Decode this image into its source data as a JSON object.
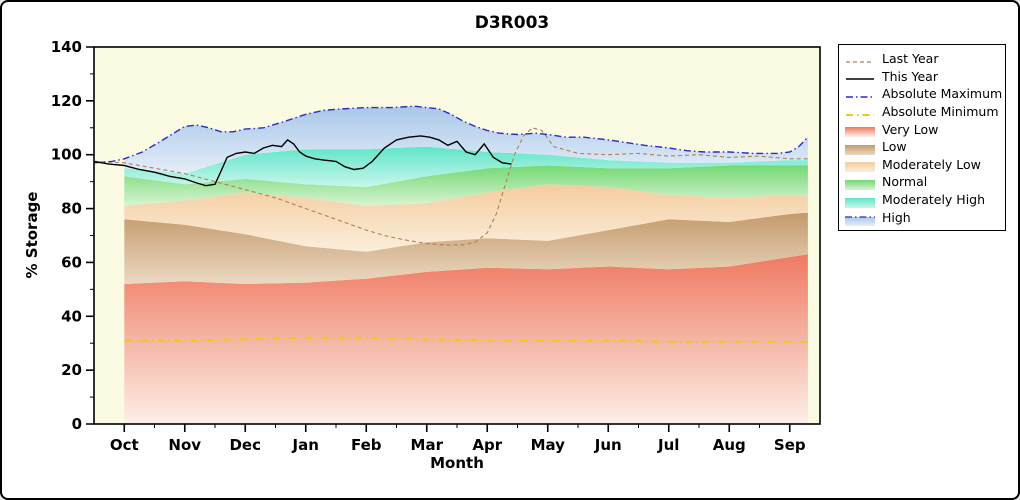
{
  "window": {
    "bg": "#ffffff",
    "border": "#000000"
  },
  "chart_data": {
    "type": "area",
    "title": "D3R003",
    "xlabel": "Month",
    "ylabel": "% Storage",
    "ylim": [
      0,
      140
    ],
    "yticks": [
      0,
      20,
      40,
      60,
      80,
      100,
      120,
      140
    ],
    "x_categories": [
      "Oct",
      "Nov",
      "Dec",
      "Jan",
      "Feb",
      "Mar",
      "Apr",
      "May",
      "Jun",
      "Jul",
      "Aug",
      "Sep"
    ],
    "x_domain": [
      -0.5,
      11.5
    ],
    "plot_bg": "#FBFBE4",
    "band_x": [
      0,
      1,
      2,
      3,
      4,
      5,
      6,
      7,
      8,
      9,
      10,
      11,
      11.3
    ],
    "bands": [
      {
        "name": "Very Low",
        "color_top": "#EF7961",
        "color_bottom": "#FCEFE8",
        "top": [
          52,
          53,
          52,
          52.5,
          54,
          56.5,
          58,
          57.5,
          58.5,
          57.5,
          58.5,
          62,
          63
        ]
      },
      {
        "name": "Low",
        "color_top": "#C49A6C",
        "color_bottom": "#EBD9C2",
        "top": [
          76,
          74,
          70.5,
          66,
          64,
          67.5,
          69,
          68,
          72,
          76,
          75,
          78,
          78.5
        ]
      },
      {
        "name": "Moderately Low",
        "color_top": "#F4CC9F",
        "color_bottom": "#FBEFDC",
        "top": [
          81,
          83,
          86,
          84,
          81,
          82,
          86,
          89,
          88,
          85,
          84,
          85,
          85
        ]
      },
      {
        "name": "Normal",
        "color_top": "#74D874",
        "color_bottom": "#D8F4D4",
        "top": [
          92,
          89,
          91,
          89,
          88,
          92,
          95,
          96,
          95,
          95,
          96,
          96,
          96
        ]
      },
      {
        "name": "Moderately High",
        "color_top": "#5FE5C8",
        "color_bottom": "#C8F7EC",
        "top": [
          95,
          93,
          100,
          102,
          102,
          103,
          101,
          100,
          98,
          97,
          97,
          98,
          98
        ]
      },
      {
        "name": "High",
        "color_top": "#A9C7E8",
        "color_bottom": "#E4EEF9",
        "top": "absolute_maximum"
      }
    ],
    "lines": {
      "last_year": {
        "label": "Last Year",
        "color": "#AE8052",
        "dash": "4 3",
        "width": 1.1,
        "x": [
          -0.5,
          0,
          0.5,
          1,
          1.5,
          2,
          2.5,
          3,
          3.5,
          4,
          4.3,
          4.6,
          5,
          5.3,
          5.6,
          5.8,
          6,
          6.15,
          6.3,
          6.45,
          6.6,
          6.75,
          6.9,
          7.1,
          7.5,
          8,
          8.5,
          9,
          9.5,
          10,
          10.5,
          11,
          11.3
        ],
        "y": [
          97.5,
          97,
          95,
          93,
          90,
          87,
          84,
          80,
          76,
          72,
          70,
          68.5,
          67,
          66.5,
          66.5,
          67.5,
          71,
          78,
          89,
          100,
          107,
          110,
          109,
          103,
          100.5,
          100,
          100.5,
          99.5,
          100,
          99,
          99.5,
          98.5,
          98.5
        ]
      },
      "this_year": {
        "label": "This Year",
        "color": "#000000",
        "dash": "",
        "width": 1.4,
        "x": [
          -0.5,
          -0.25,
          0,
          0.25,
          0.5,
          0.75,
          1,
          1.2,
          1.35,
          1.5,
          1.6,
          1.7,
          1.85,
          2,
          2.15,
          2.3,
          2.45,
          2.6,
          2.7,
          2.8,
          2.9,
          3,
          3.15,
          3.3,
          3.5,
          3.65,
          3.8,
          3.95,
          4.1,
          4.3,
          4.5,
          4.7,
          4.9,
          5.05,
          5.2,
          5.35,
          5.5,
          5.65,
          5.8,
          5.95,
          6.1,
          6.25,
          6.4
        ],
        "y": [
          97.5,
          96.5,
          96,
          94.5,
          93.5,
          92,
          91,
          89.5,
          88.5,
          89,
          94,
          99,
          100.5,
          101,
          100.5,
          102.5,
          103.5,
          103,
          105.5,
          104,
          101,
          99.5,
          98.5,
          98,
          97.5,
          95.5,
          94.5,
          95,
          97.5,
          102.5,
          105.5,
          106.5,
          107,
          106.5,
          105.5,
          103.5,
          105,
          101,
          100,
          104,
          99,
          97,
          96.5
        ]
      },
      "absolute_maximum": {
        "label": "Absolute Maximum",
        "color": "#2B2BC8",
        "dash": "7 3 1.5 3",
        "width": 1.4,
        "x": [
          -0.5,
          -0.2,
          0,
          0.3,
          0.6,
          1,
          1.2,
          1.4,
          1.6,
          1.8,
          2,
          2.3,
          2.6,
          3,
          3.3,
          3.6,
          4,
          4.4,
          4.8,
          5,
          5.2,
          5.4,
          5.6,
          5.8,
          6,
          6.2,
          6.5,
          6.8,
          7,
          7.3,
          7.6,
          8,
          8.3,
          8.6,
          9,
          9.3,
          9.6,
          10,
          10.4,
          10.8,
          11,
          11.15,
          11.3
        ],
        "y": [
          97,
          97.5,
          98.5,
          101,
          105,
          110.5,
          111,
          110,
          108.5,
          108.5,
          109.5,
          110,
          112,
          115,
          116.5,
          117,
          117.5,
          117.5,
          118,
          117.5,
          117,
          115,
          112.5,
          110.5,
          109,
          108,
          107.5,
          108,
          107.5,
          106.5,
          106.5,
          105.5,
          104.5,
          103.5,
          102.5,
          101.5,
          101,
          101,
          100.5,
          100.5,
          101,
          103,
          106.5
        ]
      },
      "absolute_minimum": {
        "label": "Absolute Minimum",
        "color": "#E8CE10",
        "dash": "7 4 1.5 4",
        "width": 2,
        "x": [
          0,
          1,
          2,
          3,
          4,
          5,
          6,
          7,
          8,
          9,
          10,
          11,
          11.3
        ],
        "y": [
          31,
          31,
          31.5,
          32,
          32,
          31.5,
          31,
          31,
          31,
          30.5,
          30.5,
          30.5,
          30.5
        ]
      }
    },
    "legend": {
      "items": [
        {
          "label": "Last Year",
          "type": "line",
          "ref": "last_year"
        },
        {
          "label": "This Year",
          "type": "line",
          "ref": "this_year"
        },
        {
          "label": "Absolute Maximum",
          "type": "line",
          "ref": "absolute_maximum"
        },
        {
          "label": "Absolute Minimum",
          "type": "line",
          "ref": "absolute_minimum"
        },
        {
          "label": "Very Low",
          "type": "band",
          "band": 0
        },
        {
          "label": "Low",
          "type": "band",
          "band": 1
        },
        {
          "label": "Moderately Low",
          "type": "band",
          "band": 2
        },
        {
          "label": "Normal",
          "type": "band",
          "band": 3
        },
        {
          "label": "Moderately High",
          "type": "band",
          "band": 4
        },
        {
          "label": "High",
          "type": "band-line",
          "band": 5,
          "ref": "absolute_maximum"
        }
      ]
    }
  }
}
